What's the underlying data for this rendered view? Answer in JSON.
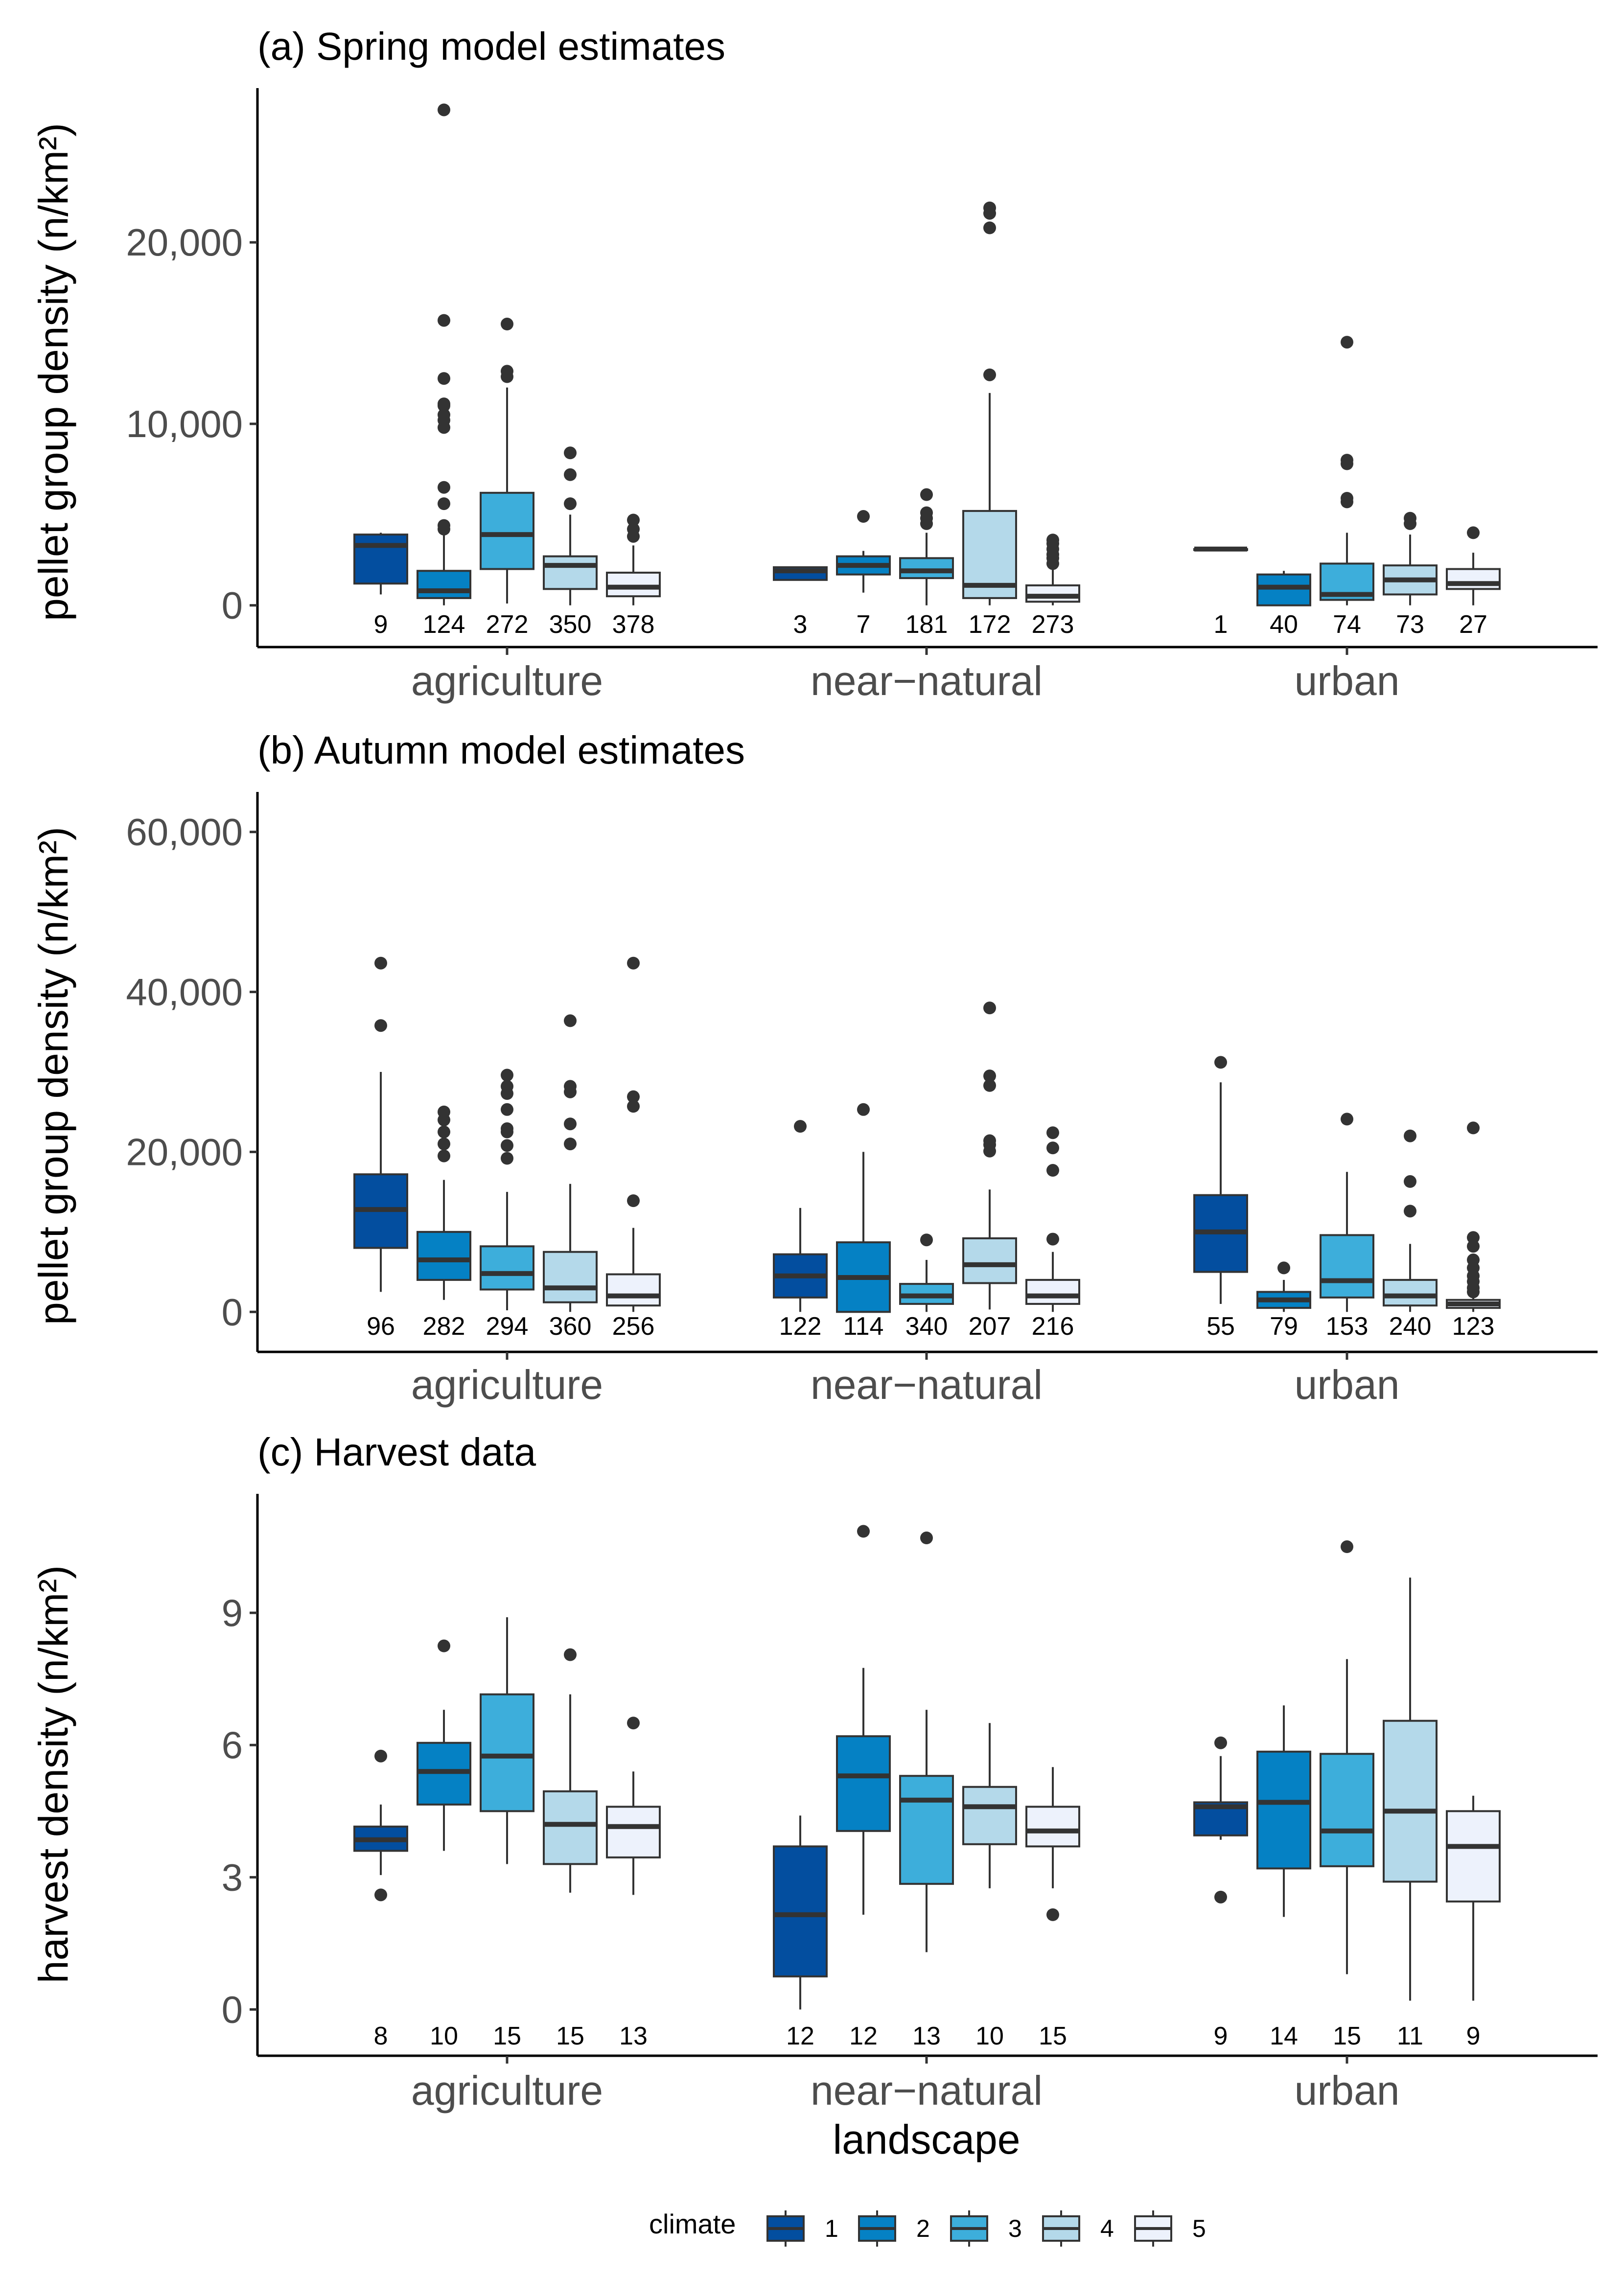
{
  "chart_data": [
    {
      "type": "box",
      "title": "(a) Spring model estimates",
      "ylabel": "pellet group density (n/km²)",
      "ylim": [
        -2300,
        28500
      ],
      "yticks": [
        0,
        10000,
        20000
      ],
      "ytick_labels": [
        "0",
        "10,000",
        "20,000"
      ],
      "categories": [
        "agriculture",
        "near−natural",
        "urban"
      ],
      "groups": [
        {
          "landscape": "agriculture",
          "climate": 1,
          "n": "9",
          "q1": 1200,
          "median": 3300,
          "q3": 3900,
          "whisker_low": 600,
          "whisker_high": 4000,
          "outliers": []
        },
        {
          "landscape": "agriculture",
          "climate": 2,
          "n": "124",
          "q1": 400,
          "median": 800,
          "q3": 1900,
          "whisker_low": 0,
          "whisker_high": 4000,
          "outliers": [
            4200,
            4400,
            5600,
            6500,
            9800,
            10200,
            10500,
            11000,
            11100,
            12500,
            15700,
            27300
          ]
        },
        {
          "landscape": "agriculture",
          "climate": 3,
          "n": "272",
          "q1": 2000,
          "median": 3900,
          "q3": 6200,
          "whisker_low": 100,
          "whisker_high": 12000,
          "outliers": [
            12600,
            12900,
            15500
          ]
        },
        {
          "landscape": "agriculture",
          "climate": 4,
          "n": "350",
          "q1": 900,
          "median": 2200,
          "q3": 2700,
          "whisker_low": 0,
          "whisker_high": 5000,
          "outliers": [
            5600,
            7200,
            8400
          ]
        },
        {
          "landscape": "agriculture",
          "climate": 5,
          "n": "378",
          "q1": 500,
          "median": 1000,
          "q3": 1800,
          "whisker_low": 0,
          "whisker_high": 3300,
          "outliers": [
            3800,
            4200,
            4700
          ]
        },
        {
          "landscape": "near−natural",
          "climate": 1,
          "n": "3",
          "q1": 1400,
          "median": 1900,
          "q3": 2100,
          "whisker_low": 1400,
          "whisker_high": 2100,
          "outliers": []
        },
        {
          "landscape": "near−natural",
          "climate": 2,
          "n": "7",
          "q1": 1700,
          "median": 2200,
          "q3": 2700,
          "whisker_low": 700,
          "whisker_high": 3000,
          "outliers": [
            4900
          ]
        },
        {
          "landscape": "near−natural",
          "climate": 3,
          "n": "181",
          "q1": 1500,
          "median": 1900,
          "q3": 2600,
          "whisker_low": 0,
          "whisker_high": 4000,
          "outliers": [
            4500,
            4800,
            5100,
            6100
          ]
        },
        {
          "landscape": "near−natural",
          "climate": 4,
          "n": "172",
          "q1": 400,
          "median": 1100,
          "q3": 5200,
          "whisker_low": 0,
          "whisker_high": 11700,
          "outliers": [
            12700,
            20800,
            21600,
            21900
          ]
        },
        {
          "landscape": "near−natural",
          "climate": 5,
          "n": "273",
          "q1": 200,
          "median": 500,
          "q3": 1100,
          "whisker_low": 0,
          "whisker_high": 2000,
          "outliers": [
            2300,
            2600,
            2800,
            3100,
            3400,
            3600
          ]
        },
        {
          "landscape": "urban",
          "climate": 1,
          "n": "1",
          "q1": 3100,
          "median": 3100,
          "q3": 3100,
          "whisker_low": 3100,
          "whisker_high": 3100,
          "outliers": []
        },
        {
          "landscape": "urban",
          "climate": 2,
          "n": "40",
          "q1": 0,
          "median": 1000,
          "q3": 1700,
          "whisker_low": 0,
          "whisker_high": 1900,
          "outliers": []
        },
        {
          "landscape": "urban",
          "climate": 3,
          "n": "74",
          "q1": 300,
          "median": 600,
          "q3": 2300,
          "whisker_low": 0,
          "whisker_high": 4000,
          "outliers": [
            5700,
            5900,
            7800,
            8000,
            14500
          ]
        },
        {
          "landscape": "urban",
          "climate": 4,
          "n": "73",
          "q1": 600,
          "median": 1400,
          "q3": 2200,
          "whisker_low": 0,
          "whisker_high": 3900,
          "outliers": [
            4500,
            4800
          ]
        },
        {
          "landscape": "urban",
          "climate": 5,
          "n": "27",
          "q1": 900,
          "median": 1200,
          "q3": 2000,
          "whisker_low": 0,
          "whisker_high": 2900,
          "outliers": [
            4000
          ]
        }
      ]
    },
    {
      "type": "box",
      "title": "(b) Autumn model estimates",
      "ylabel": "pellet group density (n/km²)",
      "ylim": [
        -5000,
        65000
      ],
      "yticks": [
        0,
        20000,
        40000,
        60000
      ],
      "ytick_labels": [
        "0",
        "20,000",
        "40,000",
        "60,000"
      ],
      "categories": [
        "agriculture",
        "near−natural",
        "urban"
      ],
      "groups": [
        {
          "landscape": "agriculture",
          "climate": 1,
          "n": "96",
          "q1": 8000,
          "median": 12800,
          "q3": 17200,
          "whisker_low": 2500,
          "whisker_high": 30000,
          "outliers": [
            35800,
            43600
          ]
        },
        {
          "landscape": "agriculture",
          "climate": 2,
          "n": "282",
          "q1": 4000,
          "median": 6500,
          "q3": 10000,
          "whisker_low": 1500,
          "whisker_high": 16500,
          "outliers": [
            19500,
            21000,
            22500,
            24000,
            25000
          ]
        },
        {
          "landscape": "agriculture",
          "climate": 3,
          "n": "294",
          "q1": 2800,
          "median": 4800,
          "q3": 8200,
          "whisker_low": 200,
          "whisker_high": 15000,
          "outliers": [
            19200,
            20800,
            22500,
            22900,
            25300,
            27300,
            28200,
            29600
          ]
        },
        {
          "landscape": "agriculture",
          "climate": 4,
          "n": "360",
          "q1": 1200,
          "median": 3000,
          "q3": 7500,
          "whisker_low": 0,
          "whisker_high": 16000,
          "outliers": [
            21000,
            23500,
            27500,
            28200,
            36400
          ]
        },
        {
          "landscape": "agriculture",
          "climate": 5,
          "n": "256",
          "q1": 800,
          "median": 2000,
          "q3": 4700,
          "whisker_low": 0,
          "whisker_high": 10500,
          "outliers": [
            13900,
            25700,
            26900,
            43600
          ]
        },
        {
          "landscape": "near−natural",
          "climate": 1,
          "n": "122",
          "q1": 1800,
          "median": 4500,
          "q3": 7200,
          "whisker_low": 0,
          "whisker_high": 13000,
          "outliers": [
            23200
          ]
        },
        {
          "landscape": "near−natural",
          "climate": 2,
          "n": "114",
          "q1": 0,
          "median": 4300,
          "q3": 8700,
          "whisker_low": 0,
          "whisker_high": 20000,
          "outliers": [
            25300
          ]
        },
        {
          "landscape": "near−natural",
          "climate": 3,
          "n": "340",
          "q1": 1000,
          "median": 2000,
          "q3": 3500,
          "whisker_low": 0,
          "whisker_high": 6500,
          "outliers": [
            9000
          ]
        },
        {
          "landscape": "near−natural",
          "climate": 4,
          "n": "207",
          "q1": 3600,
          "median": 5900,
          "q3": 9200,
          "whisker_low": 300,
          "whisker_high": 15300,
          "outliers": [
            20100,
            20900,
            21400,
            28300,
            29500,
            38000
          ]
        },
        {
          "landscape": "near−natural",
          "climate": 5,
          "n": "216",
          "q1": 1000,
          "median": 2000,
          "q3": 4000,
          "whisker_low": 0,
          "whisker_high": 7500,
          "outliers": [
            9100,
            17700,
            20500,
            22400
          ]
        },
        {
          "landscape": "urban",
          "climate": 1,
          "n": "55",
          "q1": 5000,
          "median": 10000,
          "q3": 14600,
          "whisker_low": 1000,
          "whisker_high": 28700,
          "outliers": [
            31200
          ]
        },
        {
          "landscape": "urban",
          "climate": 2,
          "n": "79",
          "q1": 500,
          "median": 1500,
          "q3": 2500,
          "whisker_low": 0,
          "whisker_high": 4000,
          "outliers": [
            5500
          ]
        },
        {
          "landscape": "urban",
          "climate": 3,
          "n": "153",
          "q1": 1800,
          "median": 3900,
          "q3": 9600,
          "whisker_low": 0,
          "whisker_high": 17500,
          "outliers": [
            24100
          ]
        },
        {
          "landscape": "urban",
          "climate": 4,
          "n": "240",
          "q1": 800,
          "median": 2000,
          "q3": 4000,
          "whisker_low": 0,
          "whisker_high": 8500,
          "outliers": [
            12600,
            16300,
            22000
          ]
        },
        {
          "landscape": "urban",
          "climate": 5,
          "n": "123",
          "q1": 500,
          "median": 1000,
          "q3": 1500,
          "whisker_low": 0,
          "whisker_high": 2000,
          "outliers": [
            2500,
            3000,
            3800,
            4500,
            5500,
            6500,
            8200,
            9300,
            23000
          ]
        }
      ]
    },
    {
      "type": "box",
      "title": "(c) Harvest data",
      "ylabel": "harvest density (n/km²)",
      "xlabel": "landscape",
      "ylim": [
        -1.05,
        11.7
      ],
      "yticks": [
        0,
        3,
        6,
        9
      ],
      "ytick_labels": [
        "0",
        "3",
        "6",
        "9"
      ],
      "categories": [
        "agriculture",
        "near−natural",
        "urban"
      ],
      "groups": [
        {
          "landscape": "agriculture",
          "climate": 1,
          "n": "8",
          "q1": 3.6,
          "median": 3.85,
          "q3": 4.15,
          "whisker_low": 3.05,
          "whisker_high": 4.65,
          "outliers": [
            2.6,
            5.75
          ]
        },
        {
          "landscape": "agriculture",
          "climate": 2,
          "n": "10",
          "q1": 4.65,
          "median": 5.4,
          "q3": 6.05,
          "whisker_low": 3.6,
          "whisker_high": 6.8,
          "outliers": [
            8.25
          ]
        },
        {
          "landscape": "agriculture",
          "climate": 3,
          "n": "15",
          "q1": 4.5,
          "median": 5.75,
          "q3": 7.15,
          "whisker_low": 3.3,
          "whisker_high": 8.9,
          "outliers": []
        },
        {
          "landscape": "agriculture",
          "climate": 4,
          "n": "15",
          "q1": 3.3,
          "median": 4.2,
          "q3": 4.95,
          "whisker_low": 2.65,
          "whisker_high": 7.15,
          "outliers": [
            8.05
          ]
        },
        {
          "landscape": "agriculture",
          "climate": 5,
          "n": "13",
          "q1": 3.45,
          "median": 4.15,
          "q3": 4.6,
          "whisker_low": 2.6,
          "whisker_high": 5.4,
          "outliers": [
            6.5
          ]
        },
        {
          "landscape": "near−natural",
          "climate": 1,
          "n": "12",
          "q1": 0.75,
          "median": 2.15,
          "q3": 3.7,
          "whisker_low": 0.0,
          "whisker_high": 4.4,
          "outliers": []
        },
        {
          "landscape": "near−natural",
          "climate": 2,
          "n": "12",
          "q1": 4.05,
          "median": 5.3,
          "q3": 6.2,
          "whisker_low": 2.15,
          "whisker_high": 7.75,
          "outliers": [
            10.85
          ]
        },
        {
          "landscape": "near−natural",
          "climate": 3,
          "n": "13",
          "q1": 2.85,
          "median": 4.75,
          "q3": 5.3,
          "whisker_low": 1.3,
          "whisker_high": 6.8,
          "outliers": [
            10.7
          ]
        },
        {
          "landscape": "near−natural",
          "climate": 4,
          "n": "10",
          "q1": 3.75,
          "median": 4.6,
          "q3": 5.05,
          "whisker_low": 2.75,
          "whisker_high": 6.5,
          "outliers": []
        },
        {
          "landscape": "near−natural",
          "climate": 5,
          "n": "15",
          "q1": 3.7,
          "median": 4.05,
          "q3": 4.6,
          "whisker_low": 2.75,
          "whisker_high": 5.5,
          "outliers": [
            2.15
          ]
        },
        {
          "landscape": "urban",
          "climate": 1,
          "n": "9",
          "q1": 3.95,
          "median": 4.6,
          "q3": 4.7,
          "whisker_low": 3.85,
          "whisker_high": 5.75,
          "outliers": [
            2.55,
            6.05
          ]
        },
        {
          "landscape": "urban",
          "climate": 2,
          "n": "14",
          "q1": 3.2,
          "median": 4.7,
          "q3": 5.85,
          "whisker_low": 2.1,
          "whisker_high": 6.9,
          "outliers": []
        },
        {
          "landscape": "urban",
          "climate": 3,
          "n": "15",
          "q1": 3.25,
          "median": 4.05,
          "q3": 5.8,
          "whisker_low": 0.8,
          "whisker_high": 7.95,
          "outliers": [
            10.5
          ]
        },
        {
          "landscape": "urban",
          "climate": 4,
          "n": "11",
          "q1": 2.9,
          "median": 4.5,
          "q3": 6.55,
          "whisker_low": 0.2,
          "whisker_high": 9.8,
          "outliers": []
        },
        {
          "landscape": "urban",
          "climate": 5,
          "n": "9",
          "q1": 2.45,
          "median": 3.7,
          "q3": 4.5,
          "whisker_low": 0.2,
          "whisker_high": 4.85,
          "outliers": []
        }
      ]
    }
  ],
  "legend": {
    "title": "climate",
    "items": [
      {
        "label": "1",
        "color": "#034e9f"
      },
      {
        "label": "2",
        "color": "#0581c4"
      },
      {
        "label": "3",
        "color": "#3daedb"
      },
      {
        "label": "4",
        "color": "#b4d9ea"
      },
      {
        "label": "5",
        "color": "#edf2fc"
      }
    ]
  }
}
